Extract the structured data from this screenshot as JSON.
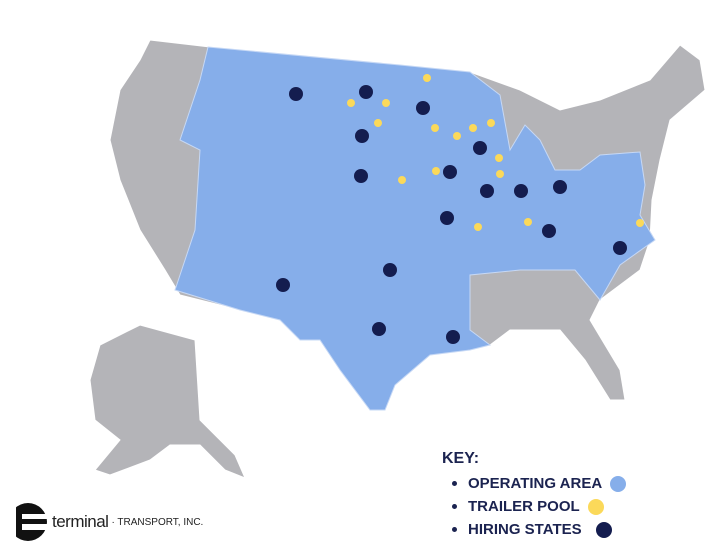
{
  "key": {
    "title": "KEY:",
    "items": [
      {
        "label": "OPERATING AREA",
        "color": "#86aeea"
      },
      {
        "label": "TRAILER POOL",
        "color": "#fbd95a"
      },
      {
        "label": "HIRING STATES",
        "color": "#141d4f"
      }
    ]
  },
  "logo": {
    "name": "terminal",
    "suffix": "· TRANSPORT, INC."
  },
  "colors": {
    "land": "#b4b4b8",
    "border": "#ffffff"
  }
}
